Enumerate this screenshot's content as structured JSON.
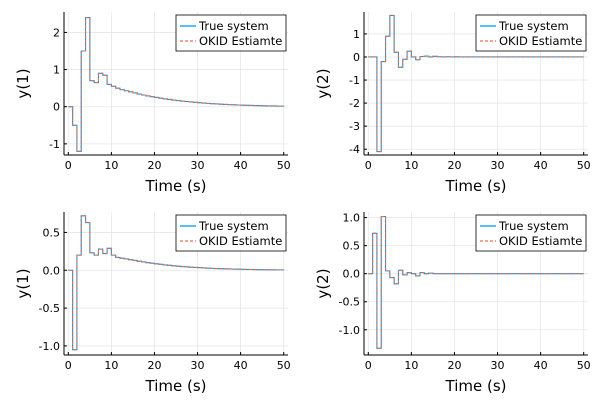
{
  "colors": {
    "true_system": "#009AFA",
    "okid_estimate": "#E26F46",
    "grid": "#e6e6e6",
    "axis": "#000000"
  },
  "chart_data": [
    {
      "type": "line",
      "title": "",
      "xlabel": "Time (s)",
      "ylabel": "y(1)",
      "xlim": [
        -1,
        51
      ],
      "ylim": [
        -1.3,
        2.55
      ],
      "xticks": [
        0,
        10,
        20,
        30,
        40,
        50
      ],
      "xtick_labels": [
        "0",
        "10",
        "20",
        "30",
        "40",
        "50"
      ],
      "yticks": [
        -1,
        0,
        1,
        2
      ],
      "ytick_labels": [
        "-1",
        "0",
        "1",
        "2"
      ],
      "legend": "top-right",
      "series": [
        {
          "name": "True system",
          "values": [
            0,
            -0.5,
            -1.2,
            1.5,
            2.4,
            0.7,
            0.65,
            0.9,
            0.85,
            0.6,
            0.55,
            0.5,
            0.46,
            0.43,
            0.4,
            0.37,
            0.34,
            0.315,
            0.29,
            0.27,
            0.25,
            0.23,
            0.21,
            0.195,
            0.18,
            0.165,
            0.152,
            0.14,
            0.129,
            0.118,
            0.108,
            0.099,
            0.09,
            0.082,
            0.075,
            0.068,
            0.062,
            0.056,
            0.051,
            0.046,
            0.042,
            0.038,
            0.034,
            0.031,
            0.028,
            0.025,
            0.022,
            0.02,
            0.018,
            0.016,
            0.014
          ]
        },
        {
          "name": "OKID Estiamte",
          "values": [
            0,
            -0.5,
            -1.2,
            1.5,
            2.4,
            0.7,
            0.65,
            0.9,
            0.85,
            0.6,
            0.55,
            0.5,
            0.46,
            0.43,
            0.4,
            0.37,
            0.34,
            0.315,
            0.29,
            0.27,
            0.25,
            0.23,
            0.21,
            0.195,
            0.18,
            0.165,
            0.152,
            0.14,
            0.129,
            0.118,
            0.108,
            0.099,
            0.09,
            0.082,
            0.075,
            0.068,
            0.062,
            0.056,
            0.051,
            0.046,
            0.042,
            0.038,
            0.034,
            0.031,
            0.028,
            0.025,
            0.022,
            0.02,
            0.018,
            0.016,
            0.014
          ]
        }
      ]
    },
    {
      "type": "line",
      "title": "",
      "xlabel": "Time (s)",
      "ylabel": "y(2)",
      "xlim": [
        -1,
        51
      ],
      "ylim": [
        -4.25,
        1.95
      ],
      "xticks": [
        0,
        10,
        20,
        30,
        40,
        50
      ],
      "xtick_labels": [
        "0",
        "10",
        "20",
        "30",
        "40",
        "50"
      ],
      "yticks": [
        -4,
        -3,
        -2,
        -1,
        0,
        1
      ],
      "ytick_labels": [
        "-4",
        "-3",
        "-2",
        "-1",
        "0",
        "1"
      ],
      "legend": "top-right",
      "series": [
        {
          "name": "True system",
          "values": [
            0,
            0,
            -4.1,
            -0.2,
            0.9,
            1.8,
            0.2,
            -0.45,
            -0.1,
            0.25,
            0.0,
            -0.12,
            0.02,
            0.04,
            0.0,
            0.03,
            0.01,
            0.0,
            0.01,
            0.0,
            0.005,
            0,
            0,
            0,
            0,
            0,
            0,
            0,
            0,
            0,
            0,
            0,
            0,
            0,
            0,
            0,
            0,
            0,
            0,
            0,
            0,
            0,
            0,
            0,
            0,
            0,
            0,
            0,
            0,
            0,
            0
          ]
        },
        {
          "name": "OKID Estiamte",
          "values": [
            0,
            0,
            -4.1,
            -0.2,
            0.9,
            1.8,
            0.2,
            -0.45,
            -0.1,
            0.25,
            0.0,
            -0.12,
            0.02,
            0.04,
            0.0,
            0.03,
            0.01,
            0.0,
            0.01,
            0.0,
            0.005,
            0,
            0,
            0,
            0,
            0,
            0,
            0,
            0,
            0,
            0,
            0,
            0,
            0,
            0,
            0,
            0,
            0,
            0,
            0,
            0,
            0,
            0,
            0,
            0,
            0,
            0,
            0,
            0,
            0,
            0
          ]
        }
      ]
    },
    {
      "type": "line",
      "title": "",
      "xlabel": "Time (s)",
      "ylabel": "y(1)",
      "xlim": [
        -1,
        51
      ],
      "ylim": [
        -1.12,
        0.77
      ],
      "xticks": [
        0,
        10,
        20,
        30,
        40,
        50
      ],
      "xtick_labels": [
        "0",
        "10",
        "20",
        "30",
        "40",
        "50"
      ],
      "yticks": [
        -1.0,
        -0.5,
        0.0,
        0.5
      ],
      "ytick_labels": [
        "-1.0",
        "-0.5",
        "0.0",
        "0.5"
      ],
      "legend": "top-right",
      "series": [
        {
          "name": "True system",
          "values": [
            0,
            -1.05,
            0.2,
            0.72,
            0.63,
            0.23,
            0.2,
            0.28,
            0.22,
            0.29,
            0.2,
            0.17,
            0.16,
            0.15,
            0.14,
            0.13,
            0.12,
            0.11,
            0.1,
            0.093,
            0.085,
            0.078,
            0.071,
            0.065,
            0.059,
            0.054,
            0.049,
            0.045,
            0.041,
            0.037,
            0.034,
            0.031,
            0.028,
            0.025,
            0.023,
            0.021,
            0.019,
            0.017,
            0.015,
            0.014,
            0.012,
            0.011,
            0.01,
            0.009,
            0.008,
            0.007,
            0.006,
            0.006,
            0.005,
            0.005,
            0.004
          ]
        },
        {
          "name": "OKID Estiamte",
          "values": [
            0,
            -1.05,
            0.2,
            0.72,
            0.63,
            0.23,
            0.2,
            0.28,
            0.22,
            0.29,
            0.2,
            0.17,
            0.16,
            0.15,
            0.14,
            0.13,
            0.12,
            0.11,
            0.1,
            0.093,
            0.085,
            0.078,
            0.071,
            0.065,
            0.059,
            0.054,
            0.049,
            0.045,
            0.041,
            0.037,
            0.034,
            0.031,
            0.028,
            0.025,
            0.023,
            0.021,
            0.019,
            0.017,
            0.015,
            0.014,
            0.012,
            0.011,
            0.01,
            0.009,
            0.008,
            0.007,
            0.006,
            0.006,
            0.005,
            0.005,
            0.004
          ]
        }
      ]
    },
    {
      "type": "line",
      "title": "",
      "xlabel": "Time (s)",
      "ylabel": "y(2)",
      "xlim": [
        -1,
        51
      ],
      "ylim": [
        -1.45,
        1.1
      ],
      "xticks": [
        0,
        10,
        20,
        30,
        40,
        50
      ],
      "xtick_labels": [
        "0",
        "10",
        "20",
        "30",
        "40",
        "50"
      ],
      "yticks": [
        -1.0,
        -0.5,
        0.0,
        0.5,
        1.0
      ],
      "ytick_labels": [
        "-1.0",
        "-0.5",
        "0.0",
        "0.5",
        "1.0"
      ],
      "legend": "top-right",
      "series": [
        {
          "name": "True system",
          "values": [
            0,
            0.72,
            -1.33,
            1.02,
            0.05,
            -0.07,
            -0.18,
            0.06,
            -0.02,
            0.02,
            0.0,
            -0.04,
            0.02,
            0.0,
            0.01,
            0.0,
            0,
            0,
            0,
            0,
            0,
            0,
            0,
            0,
            0,
            0,
            0,
            0,
            0,
            0,
            0,
            0,
            0,
            0,
            0,
            0,
            0,
            0,
            0,
            0,
            0,
            0,
            0,
            0,
            0,
            0,
            0,
            0,
            0,
            0,
            0
          ]
        },
        {
          "name": "OKID Estiamte",
          "values": [
            0,
            0.72,
            -1.33,
            1.02,
            0.05,
            -0.07,
            -0.18,
            0.06,
            -0.02,
            0.02,
            0.0,
            -0.04,
            0.02,
            0.0,
            0.01,
            0.0,
            0,
            0,
            0,
            0,
            0,
            0,
            0,
            0,
            0,
            0,
            0,
            0,
            0,
            0,
            0,
            0,
            0,
            0,
            0,
            0,
            0,
            0,
            0,
            0,
            0,
            0,
            0,
            0,
            0,
            0,
            0,
            0,
            0,
            0,
            0
          ]
        }
      ]
    }
  ]
}
